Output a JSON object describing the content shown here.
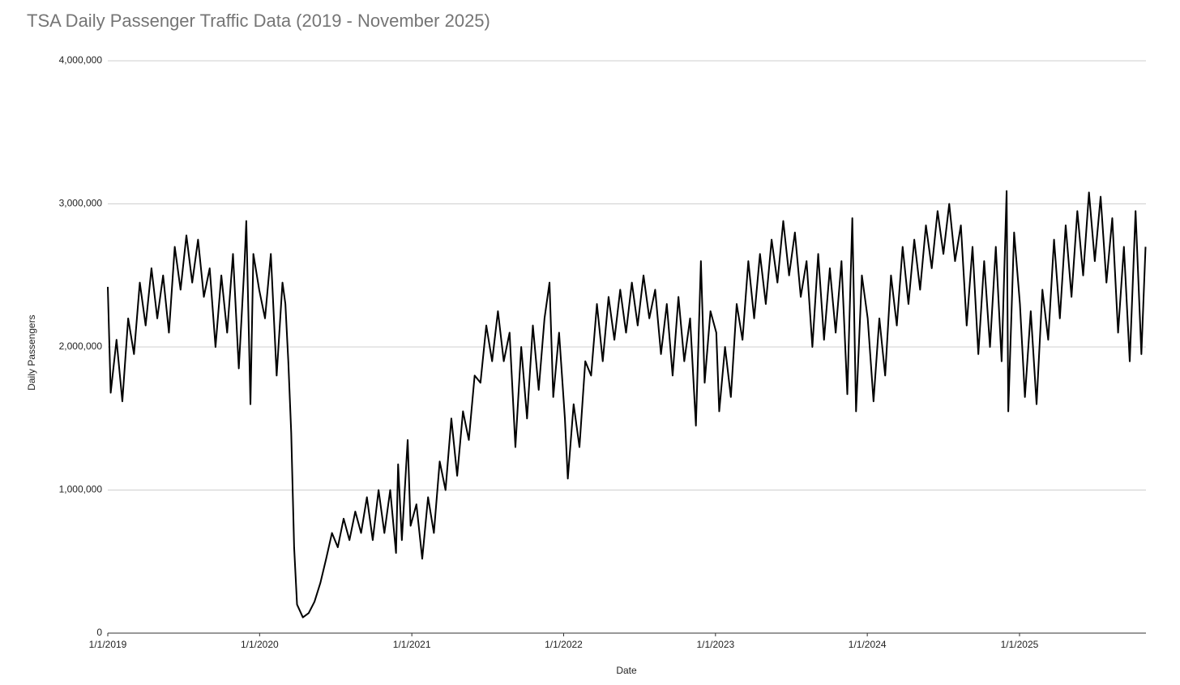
{
  "chart_data": {
    "type": "line",
    "title": "TSA Daily Passenger Traffic Data (2019 - November 2025)",
    "x_label": "Date",
    "y_label": "Daily Passengers",
    "xlim": [
      "1/1/2019",
      "11/1/2025"
    ],
    "xticks": [
      "1/1/2019",
      "1/1/2020",
      "1/1/2021",
      "1/1/2022",
      "1/1/2023",
      "1/1/2024",
      "1/1/2025"
    ],
    "ylim": [
      0,
      4000000
    ],
    "yticks": [
      0,
      {
        "value": 1000000,
        "label": "1,000,000"
      },
      {
        "value": 2000000,
        "label": "2,000,000"
      },
      {
        "value": 3000000,
        "label": "3,000,000"
      },
      {
        "value": 4000000,
        "label": "4,000,000"
      }
    ],
    "grid": true,
    "x": [
      "1/1/2019",
      "1/8/2019",
      "1/22/2019",
      "2/5/2019",
      "2/19/2019",
      "3/5/2019",
      "3/19/2019",
      "4/2/2019",
      "4/16/2019",
      "4/30/2019",
      "5/14/2019",
      "5/28/2019",
      "6/11/2019",
      "6/25/2019",
      "7/9/2019",
      "7/23/2019",
      "8/6/2019",
      "8/20/2019",
      "9/3/2019",
      "9/17/2019",
      "10/1/2019",
      "10/15/2019",
      "10/29/2019",
      "11/12/2019",
      "11/26/2019",
      "11/30/2019",
      "12/10/2019",
      "12/17/2019",
      "12/31/2019",
      "1/14/2020",
      "1/28/2020",
      "2/11/2020",
      "2/25/2020",
      "3/3/2020",
      "3/10/2020",
      "3/17/2020",
      "3/24/2020",
      "3/31/2020",
      "4/14/2020",
      "4/28/2020",
      "5/12/2020",
      "5/26/2020",
      "6/9/2020",
      "6/23/2020",
      "7/7/2020",
      "7/21/2020",
      "8/4/2020",
      "8/18/2020",
      "9/1/2020",
      "9/15/2020",
      "9/29/2020",
      "10/13/2020",
      "10/27/2020",
      "11/10/2020",
      "11/24/2020",
      "11/29/2020",
      "12/8/2020",
      "12/22/2020",
      "12/29/2020",
      "1/12/2021",
      "1/26/2021",
      "2/9/2021",
      "2/23/2021",
      "3/9/2021",
      "3/23/2021",
      "4/6/2021",
      "4/20/2021",
      "5/4/2021",
      "5/18/2021",
      "6/1/2021",
      "6/15/2021",
      "6/29/2021",
      "7/13/2021",
      "7/27/2021",
      "8/10/2021",
      "8/24/2021",
      "9/7/2021",
      "9/21/2021",
      "10/5/2021",
      "10/19/2021",
      "11/2/2021",
      "11/16/2021",
      "11/28/2021",
      "12/7/2021",
      "12/21/2021",
      "1/4/2022",
      "1/11/2022",
      "1/25/2022",
      "2/8/2022",
      "2/22/2022",
      "3/8/2022",
      "3/22/2022",
      "4/5/2022",
      "4/19/2022",
      "5/3/2022",
      "5/17/2022",
      "5/31/2022",
      "6/14/2022",
      "6/28/2022",
      "7/12/2022",
      "7/26/2022",
      "8/9/2022",
      "8/23/2022",
      "9/6/2022",
      "9/20/2022",
      "10/4/2022",
      "10/18/2022",
      "11/1/2022",
      "11/15/2022",
      "11/27/2022",
      "12/6/2022",
      "12/20/2022",
      "1/3/2023",
      "1/10/2023",
      "1/24/2023",
      "2/7/2023",
      "2/21/2023",
      "3/7/2023",
      "3/21/2023",
      "4/4/2023",
      "4/18/2023",
      "5/2/2023",
      "5/16/2023",
      "5/30/2023",
      "6/13/2023",
      "6/27/2023",
      "7/11/2023",
      "7/25/2023",
      "8/8/2023",
      "8/22/2023",
      "9/5/2023",
      "9/19/2023",
      "10/3/2023",
      "10/17/2023",
      "10/31/2023",
      "11/14/2023",
      "11/26/2023",
      "12/5/2023",
      "12/19/2023",
      "1/2/2024",
      "1/16/2024",
      "1/30/2024",
      "2/13/2024",
      "2/27/2024",
      "3/12/2024",
      "3/26/2024",
      "4/9/2024",
      "4/23/2024",
      "5/7/2024",
      "5/21/2024",
      "6/4/2024",
      "6/18/2024",
      "7/2/2024",
      "7/16/2024",
      "7/30/2024",
      "8/13/2024",
      "8/27/2024",
      "9/10/2024",
      "9/24/2024",
      "10/8/2024",
      "10/22/2024",
      "11/5/2024",
      "11/19/2024",
      "12/1/2024",
      "12/5/2024",
      "12/19/2024",
      "1/2/2025",
      "1/14/2025",
      "1/28/2025",
      "2/11/2025",
      "2/25/2025",
      "3/11/2025",
      "3/25/2025",
      "4/8/2025",
      "4/22/2025",
      "5/6/2025",
      "5/20/2025",
      "6/3/2025",
      "6/17/2025",
      "7/1/2025",
      "7/15/2025",
      "7/29/2025",
      "8/12/2025",
      "8/26/2025",
      "9/9/2025",
      "9/23/2025",
      "10/7/2025",
      "10/21/2025",
      "10/31/2025"
    ],
    "series": [
      {
        "name": "Daily Passengers",
        "color": "#000000",
        "values": [
          2420000,
          1680000,
          2050000,
          1620000,
          2200000,
          1950000,
          2450000,
          2150000,
          2550000,
          2200000,
          2500000,
          2100000,
          2700000,
          2400000,
          2780000,
          2450000,
          2750000,
          2350000,
          2550000,
          2000000,
          2500000,
          2100000,
          2650000,
          1850000,
          2600000,
          2880000,
          1600000,
          2650000,
          2400000,
          2200000,
          2650000,
          1800000,
          2450000,
          2300000,
          1900000,
          1400000,
          600000,
          200000,
          110000,
          140000,
          220000,
          350000,
          520000,
          700000,
          600000,
          800000,
          650000,
          850000,
          700000,
          950000,
          650000,
          1000000,
          700000,
          1000000,
          560000,
          1180000,
          650000,
          1350000,
          750000,
          900000,
          520000,
          950000,
          700000,
          1200000,
          1000000,
          1500000,
          1100000,
          1550000,
          1350000,
          1800000,
          1750000,
          2150000,
          1900000,
          2250000,
          1900000,
          2100000,
          1300000,
          2000000,
          1500000,
          2150000,
          1700000,
          2200000,
          2450000,
          1650000,
          2100000,
          1500000,
          1080000,
          1600000,
          1300000,
          1900000,
          1800000,
          2300000,
          1900000,
          2350000,
          2050000,
          2400000,
          2100000,
          2450000,
          2150000,
          2500000,
          2200000,
          2400000,
          1950000,
          2300000,
          1800000,
          2350000,
          1900000,
          2200000,
          1450000,
          2600000,
          1750000,
          2250000,
          2100000,
          1550000,
          2000000,
          1650000,
          2300000,
          2050000,
          2600000,
          2200000,
          2650000,
          2300000,
          2750000,
          2450000,
          2880000,
          2500000,
          2800000,
          2350000,
          2600000,
          2000000,
          2650000,
          2050000,
          2550000,
          2100000,
          2600000,
          1670000,
          2900000,
          1550000,
          2500000,
          2200000,
          1620000,
          2200000,
          1800000,
          2500000,
          2150000,
          2700000,
          2300000,
          2750000,
          2400000,
          2850000,
          2550000,
          2950000,
          2650000,
          3000000,
          2600000,
          2850000,
          2150000,
          2700000,
          1950000,
          2600000,
          2000000,
          2700000,
          1900000,
          3090000,
          1550000,
          2800000,
          2300000,
          1650000,
          2250000,
          1600000,
          2400000,
          2050000,
          2750000,
          2200000,
          2850000,
          2350000,
          2950000,
          2500000,
          3080000,
          2600000,
          3050000,
          2450000,
          2900000,
          2100000,
          2700000,
          1900000,
          2950000,
          1950000,
          2700000
        ]
      }
    ]
  }
}
